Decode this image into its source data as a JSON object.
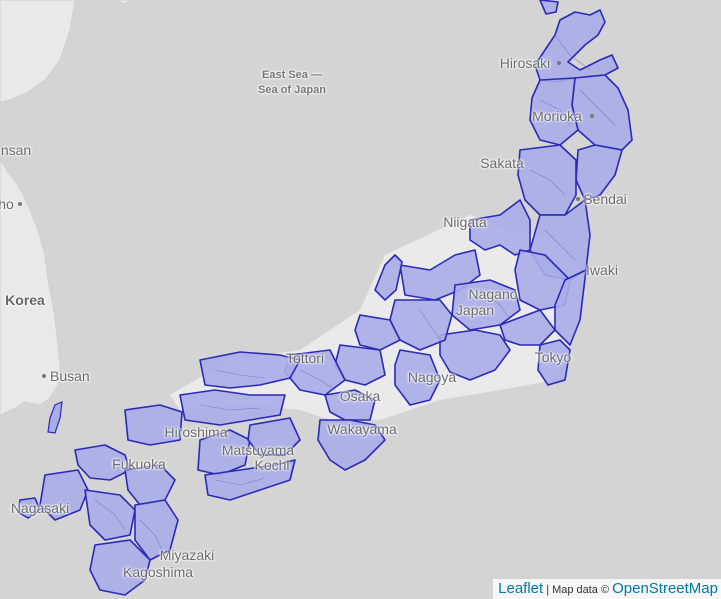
{
  "map": {
    "sea_label_1": "East Sea —",
    "sea_label_2": "Sea of Japan",
    "country": "Korea",
    "cities": [
      {
        "id": "hirosaki",
        "label": "Hirosaki"
      },
      {
        "id": "morioka",
        "label": "Morioka"
      },
      {
        "id": "sakata",
        "label": "Sakata"
      },
      {
        "id": "sendai",
        "label": "Sendai"
      },
      {
        "id": "niigata",
        "label": "Niigata"
      },
      {
        "id": "iwaki",
        "label": "Iwaki"
      },
      {
        "id": "nagano",
        "label": "Nagano"
      },
      {
        "id": "kofu",
        "label": "Japan"
      },
      {
        "id": "tokyo",
        "label": "Tokyo"
      },
      {
        "id": "nagoya",
        "label": "Nagoya"
      },
      {
        "id": "osaka",
        "label": "Osaka"
      },
      {
        "id": "wakayama",
        "label": "Wakayama"
      },
      {
        "id": "tottori",
        "label": "Tottori"
      },
      {
        "id": "hiroshima",
        "label": "Hiroshima"
      },
      {
        "id": "matsuyama",
        "label": "Matsuyama"
      },
      {
        "id": "kochi",
        "label": "Kochi"
      },
      {
        "id": "fukuoka",
        "label": "Fukuoka"
      },
      {
        "id": "nagasaki",
        "label": "Nagasaki"
      },
      {
        "id": "miyazaki",
        "label": "Miyazaki"
      },
      {
        "id": "kagoshima",
        "label": "Kagoshima"
      },
      {
        "id": "busan",
        "label": "Busan"
      },
      {
        "id": "gunsan",
        "label": "nsan"
      },
      {
        "id": "jeonju",
        "label": "ho"
      }
    ],
    "colors": {
      "sea": "#d4d4d4",
      "land_gray": "#e8e8e8",
      "region_fill": "#a9ade8",
      "region_stroke": "#2a2ab8"
    }
  },
  "attribution": {
    "leaflet": "Leaflet",
    "separator": "|",
    "map_data": "Map data ©",
    "osm": "OpenStreetMap"
  }
}
